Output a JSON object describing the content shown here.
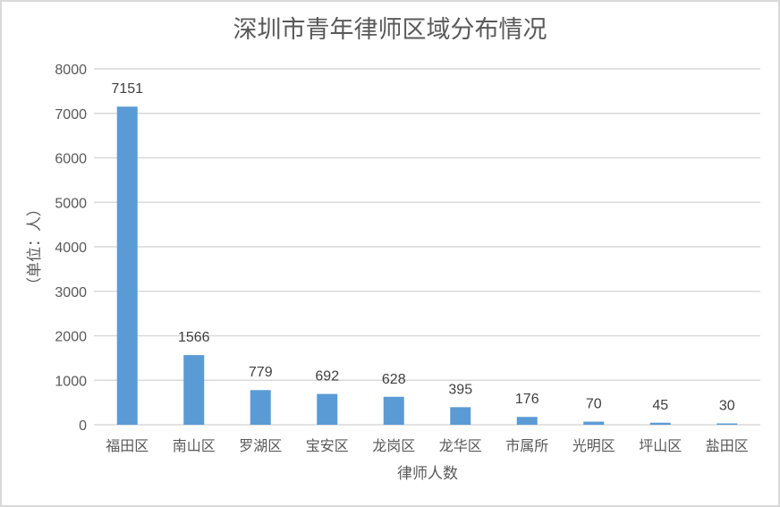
{
  "chart_data": {
    "type": "bar",
    "title": "深圳市青年律师区域分布情况",
    "xlabel": "律师人数",
    "ylabel": "（单位：人）",
    "categories": [
      "福田区",
      "南山区",
      "罗湖区",
      "宝安区",
      "龙岗区",
      "龙华区",
      "市属所",
      "光明区",
      "坪山区",
      "盐田区"
    ],
    "values": [
      7151,
      1566,
      779,
      692,
      628,
      395,
      176,
      70,
      45,
      30
    ],
    "ylim": [
      0,
      8000
    ],
    "yticks": [
      0,
      1000,
      2000,
      3000,
      4000,
      5000,
      6000,
      7000,
      8000
    ],
    "grid": true,
    "data_labels": true,
    "bar_color": "#5b9bd5"
  }
}
